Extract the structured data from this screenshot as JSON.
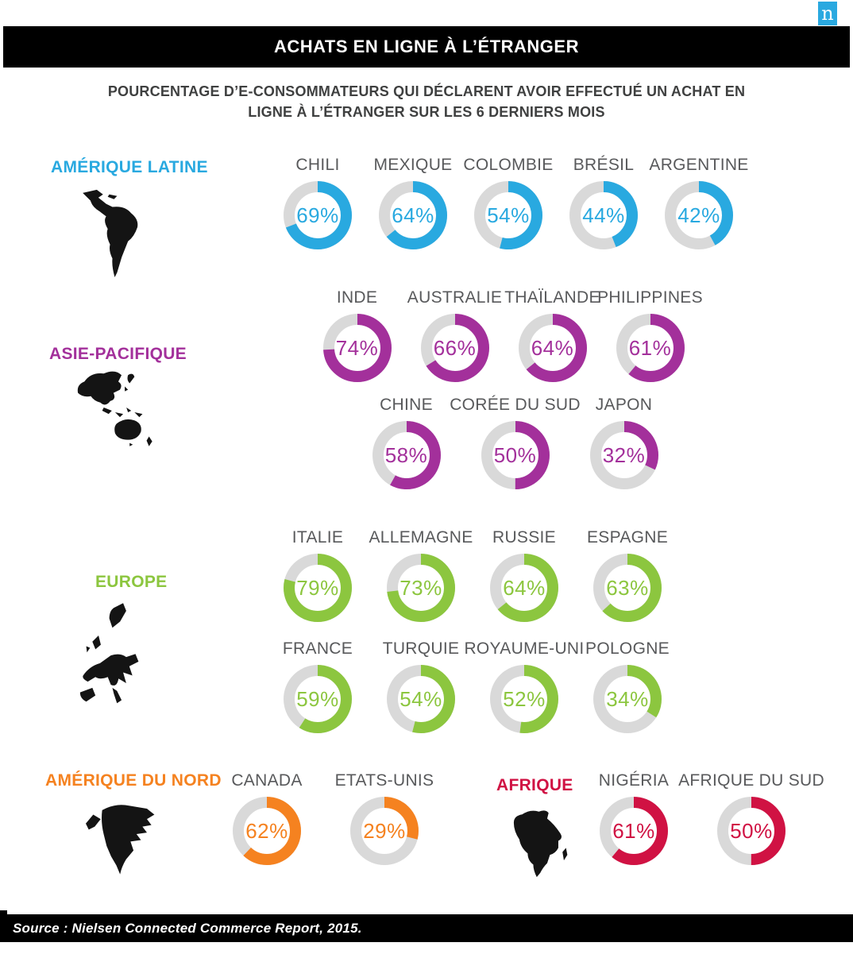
{
  "logo": {
    "letter": "n",
    "color": "#2AA9E0"
  },
  "header": {
    "title": "ACHATS EN LIGNE À L’ÉTRANGER"
  },
  "subtitle": {
    "line1": "POURCENTAGE D’E-CONSOMMATEURS QUI DÉCLARENT AVOIR EFFECTUÉ UN ACHAT EN",
    "line2": "LIGNE À L’ÉTRANGER SUR LES 6 DERNIERS MOIS"
  },
  "footer": {
    "source": "Source : Nielsen Connected Commerce Report, 2015."
  },
  "chart_data": {
    "type": "pie",
    "subtype": "donut-grid",
    "unit": "%",
    "value_range": [
      0,
      100
    ],
    "arc_start": "top",
    "arc_direction": "clockwise",
    "track_color": "#D9D9D9",
    "regions": [
      {
        "name": "AMÉRIQUE LATINE",
        "color": "#29A9E0",
        "rows": [
          [
            {
              "label": "CHILI",
              "value": 69
            },
            {
              "label": "MEXIQUE",
              "value": 64
            },
            {
              "label": "COLOMBIE",
              "value": 54
            },
            {
              "label": "BRÉSIL",
              "value": 44
            },
            {
              "label": "ARGENTINE",
              "value": 42
            }
          ]
        ]
      },
      {
        "name": "ASIE-PACIFIQUE",
        "color": "#A3309B",
        "rows": [
          [
            {
              "label": "INDE",
              "value": 74
            },
            {
              "label": "AUSTRALIE",
              "value": 66
            },
            {
              "label": "THAÏLANDE",
              "value": 64
            },
            {
              "label": "PHILIPPINES",
              "value": 61
            }
          ],
          [
            {
              "label": "CHINE",
              "value": 58
            },
            {
              "label": "CORÉE DU SUD",
              "value": 50
            },
            {
              "label": "JAPON",
              "value": 32
            }
          ]
        ]
      },
      {
        "name": "EUROPE",
        "color": "#8CC63F",
        "rows": [
          [
            {
              "label": "ITALIE",
              "value": 79
            },
            {
              "label": "ALLEMAGNE",
              "value": 73
            },
            {
              "label": "RUSSIE",
              "value": 64
            },
            {
              "label": "ESPAGNE",
              "value": 63
            }
          ],
          [
            {
              "label": "FRANCE",
              "value": 59
            },
            {
              "label": "TURQUIE",
              "value": 54
            },
            {
              "label": "ROYAUME-UNI",
              "value": 52
            },
            {
              "label": "POLOGNE",
              "value": 34
            }
          ]
        ]
      },
      {
        "name": "AMÉRIQUE DU NORD",
        "color": "#F58220",
        "rows": [
          [
            {
              "label": "CANADA",
              "value": 62
            },
            {
              "label": "ETATS-UNIS",
              "value": 29
            }
          ]
        ]
      },
      {
        "name": "AFRIQUE",
        "color": "#D01243",
        "rows": [
          [
            {
              "label": "NIGÉRIA",
              "value": 61
            },
            {
              "label": "AFRIQUE DU SUD",
              "value": 50
            }
          ]
        ]
      }
    ]
  }
}
